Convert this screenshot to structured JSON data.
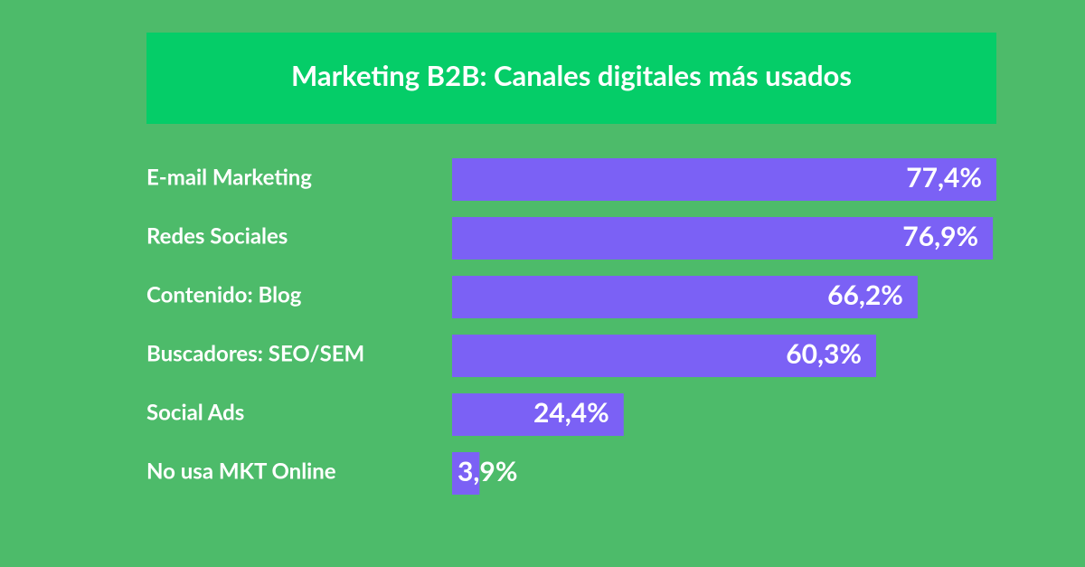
{
  "chart_data": {
    "type": "hbar",
    "title": "Marketing B2B: Canales digitales más usados",
    "categories": [
      "E-mail Marketing",
      "Redes Sociales",
      "Contenido: Blog",
      "Buscadores: SEO/SEM",
      "Social Ads",
      "No usa MKT Online"
    ],
    "values": [
      77.4,
      76.9,
      66.2,
      60.3,
      24.4,
      3.9
    ],
    "value_labels": [
      "77,4%",
      "76,9%",
      "66,2%",
      "60,3%",
      "24,4%",
      "3,9%"
    ],
    "color": "#7b61f5"
  }
}
